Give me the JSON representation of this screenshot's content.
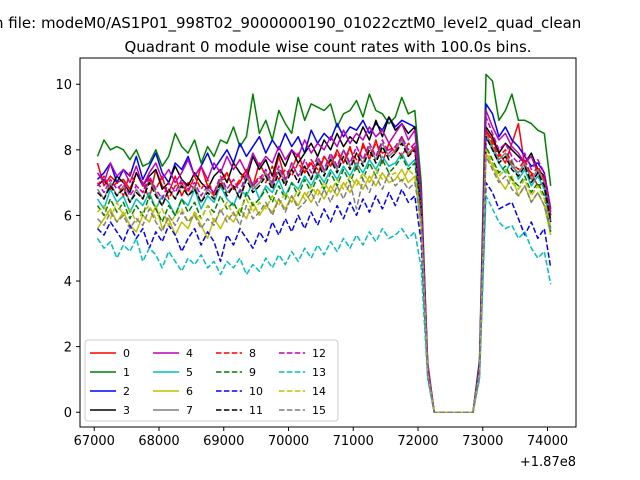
{
  "chart_data": {
    "type": "line",
    "suptitle": "n file: modeM0/AS1P01_998T02_9000000190_01022cztM0_level2_quad_clean",
    "title": "Quadrant 0 module wise count rates with 100.0s bins.",
    "x_offset_label": "+1.87e8",
    "xlim": [
      66780,
      74440
    ],
    "ylim": [
      -0.45,
      10.8
    ],
    "xticks": [
      67000,
      68000,
      69000,
      70000,
      71000,
      72000,
      73000,
      74000
    ],
    "yticks": [
      0,
      2,
      4,
      6,
      8,
      10
    ],
    "legend_position": "lower-left",
    "bin_start": 67050,
    "bin_step": 100,
    "n_bins": 71,
    "series": [
      {
        "name": "0",
        "color": "#ff0000",
        "dash": "solid",
        "values": [
          7.6,
          6.9,
          7.2,
          7.0,
          7.1,
          6.8,
          7.3,
          7.0,
          6.5,
          7.4,
          6.9,
          6.7,
          7.2,
          6.6,
          7.0,
          6.8,
          7.5,
          6.9,
          6.7,
          7.1,
          7.3,
          6.8,
          7.0,
          7.4,
          6.9,
          7.6,
          7.2,
          7.0,
          7.8,
          7.1,
          7.4,
          7.9,
          7.3,
          7.6,
          7.2,
          7.8,
          7.5,
          8.0,
          7.6,
          8.1,
          7.4,
          8.2,
          7.7,
          8.3,
          7.6,
          8.2,
          7.9,
          8.4,
          7.8,
          8.1,
          6.5,
          1.4,
          0.0,
          0.0,
          0.0,
          0.0,
          0.0,
          0.0,
          0.0,
          1.2,
          8.6,
          8.3,
          7.9,
          7.6,
          8.2,
          8.8,
          7.5,
          7.3,
          6.9,
          7.0,
          5.8
        ]
      },
      {
        "name": "1",
        "color": "#008000",
        "dash": "solid",
        "values": [
          7.8,
          8.3,
          8.0,
          8.1,
          8.0,
          7.7,
          8.0,
          7.5,
          7.6,
          8.0,
          7.5,
          7.8,
          8.5,
          8.1,
          7.9,
          8.3,
          7.6,
          8.1,
          7.8,
          8.3,
          8.2,
          8.7,
          8.1,
          8.4,
          9.7,
          8.5,
          8.9,
          8.3,
          9.2,
          8.8,
          8.5,
          9.6,
          8.9,
          9.4,
          9.3,
          9.2,
          9.4,
          8.7,
          9.1,
          9.2,
          9.5,
          9.0,
          9.7,
          9.2,
          9.1,
          8.8,
          9.0,
          9.6,
          9.1,
          9.2,
          7.0,
          1.5,
          0.0,
          0.0,
          0.0,
          0.0,
          0.0,
          0.0,
          0.0,
          1.6,
          10.3,
          10.1,
          8.9,
          9.2,
          9.7,
          8.9,
          8.9,
          8.8,
          8.6,
          8.5,
          6.9
        ]
      },
      {
        "name": "2",
        "color": "#0000ff",
        "dash": "solid",
        "values": [
          7.1,
          7.3,
          7.6,
          7.0,
          7.4,
          7.2,
          7.8,
          7.1,
          7.5,
          7.9,
          7.3,
          7.0,
          7.6,
          7.4,
          7.8,
          7.2,
          7.5,
          7.9,
          7.4,
          7.7,
          8.0,
          7.6,
          8.2,
          7.8,
          8.1,
          8.4,
          7.9,
          8.3,
          8.0,
          8.5,
          8.1,
          8.4,
          7.9,
          8.6,
          8.2,
          8.5,
          8.3,
          8.8,
          8.4,
          8.7,
          8.6,
          8.9,
          8.5,
          8.8,
          8.6,
          9.0,
          8.7,
          8.9,
          8.8,
          8.7,
          6.6,
          1.4,
          0.0,
          0.0,
          0.0,
          0.0,
          0.0,
          0.0,
          0.0,
          1.5,
          9.4,
          9.1,
          8.4,
          8.7,
          8.3,
          8.1,
          7.8,
          7.5,
          7.6,
          7.3,
          6.2
        ]
      },
      {
        "name": "3",
        "color": "#000000",
        "dash": "solid",
        "values": [
          6.9,
          7.1,
          6.8,
          7.2,
          7.0,
          6.7,
          7.3,
          6.9,
          7.2,
          7.4,
          6.8,
          7.0,
          7.5,
          7.1,
          6.9,
          7.3,
          7.0,
          6.8,
          7.2,
          7.4,
          7.0,
          7.6,
          7.3,
          7.1,
          7.8,
          7.4,
          7.7,
          7.2,
          7.9,
          7.5,
          8.0,
          7.6,
          7.9,
          8.2,
          7.8,
          8.3,
          8.0,
          8.5,
          8.1,
          8.4,
          8.2,
          8.7,
          8.3,
          8.9,
          8.4,
          9.0,
          8.6,
          8.8,
          8.5,
          8.7,
          6.4,
          1.3,
          0.0,
          0.0,
          0.0,
          0.0,
          0.0,
          0.0,
          0.0,
          1.3,
          8.7,
          8.4,
          7.9,
          8.2,
          8.0,
          7.8,
          7.6,
          7.9,
          7.4,
          7.2,
          6.0
        ]
      },
      {
        "name": "4",
        "color": "#bf00bf",
        "dash": "solid",
        "values": [
          7.3,
          7.0,
          7.6,
          7.2,
          7.4,
          7.0,
          7.5,
          6.9,
          7.3,
          7.6,
          7.1,
          7.4,
          7.0,
          7.3,
          7.7,
          7.2,
          7.5,
          7.1,
          7.6,
          7.3,
          7.8,
          7.4,
          7.7,
          7.3,
          7.9,
          7.5,
          7.8,
          7.6,
          8.1,
          7.7,
          8.0,
          7.8,
          8.3,
          7.9,
          8.2,
          8.0,
          8.4,
          8.1,
          8.6,
          8.2,
          8.5,
          8.3,
          8.7,
          8.4,
          8.6,
          8.2,
          8.5,
          8.8,
          8.3,
          8.6,
          6.6,
          1.5,
          0.0,
          0.0,
          0.0,
          0.0,
          0.0,
          0.0,
          0.0,
          1.4,
          9.2,
          8.7,
          8.3,
          8.5,
          8.1,
          7.9,
          7.6,
          7.8,
          7.3,
          7.1,
          6.1
        ]
      },
      {
        "name": "5",
        "color": "#00bfbf",
        "dash": "solid",
        "values": [
          6.5,
          6.2,
          6.8,
          6.4,
          6.6,
          6.1,
          6.5,
          6.3,
          6.7,
          6.2,
          6.6,
          6.4,
          6.0,
          6.5,
          6.3,
          6.8,
          6.2,
          6.6,
          6.4,
          6.9,
          6.5,
          6.3,
          6.8,
          6.6,
          7.0,
          6.5,
          6.9,
          6.7,
          7.1,
          6.6,
          7.0,
          6.8,
          7.2,
          6.9,
          7.3,
          7.0,
          7.4,
          7.1,
          7.5,
          7.2,
          7.6,
          7.3,
          7.7,
          7.4,
          7.8,
          7.5,
          7.6,
          7.9,
          7.5,
          7.7,
          6.0,
          1.2,
          0.0,
          0.0,
          0.0,
          0.0,
          0.0,
          0.0,
          0.0,
          1.3,
          8.4,
          8.0,
          7.6,
          7.3,
          7.7,
          7.1,
          7.4,
          6.9,
          7.2,
          6.8,
          5.6
        ]
      },
      {
        "name": "6",
        "color": "#bfbf00",
        "dash": "solid",
        "values": [
          5.6,
          5.9,
          6.2,
          5.8,
          6.1,
          5.7,
          5.5,
          6.0,
          5.8,
          6.3,
          5.6,
          5.9,
          5.4,
          5.8,
          5.6,
          6.1,
          5.7,
          5.3,
          5.9,
          5.6,
          6.0,
          5.8,
          6.2,
          5.9,
          6.4,
          6.0,
          6.3,
          6.1,
          6.5,
          6.2,
          6.6,
          6.3,
          6.7,
          6.4,
          6.8,
          6.5,
          6.9,
          6.6,
          7.0,
          6.7,
          7.1,
          6.8,
          7.2,
          6.9,
          7.3,
          7.0,
          7.1,
          7.4,
          7.0,
          7.2,
          5.6,
          1.1,
          0.0,
          0.0,
          0.0,
          0.0,
          0.0,
          0.0,
          0.0,
          1.2,
          7.9,
          7.5,
          7.1,
          6.8,
          7.2,
          6.6,
          6.9,
          6.4,
          6.7,
          6.3,
          5.4
        ]
      },
      {
        "name": "7",
        "color": "#7f7f7f",
        "dash": "solid",
        "values": [
          6.8,
          6.5,
          7.0,
          6.6,
          6.9,
          6.4,
          6.8,
          6.5,
          7.1,
          6.7,
          6.3,
          6.8,
          6.5,
          7.0,
          6.6,
          6.9,
          6.4,
          6.8,
          6.6,
          7.1,
          6.7,
          6.9,
          6.5,
          7.2,
          6.8,
          7.0,
          7.3,
          6.9,
          7.4,
          7.0,
          7.6,
          7.2,
          7.5,
          7.1,
          7.7,
          7.3,
          7.8,
          7.4,
          8.0,
          7.5,
          7.9,
          7.6,
          8.1,
          7.7,
          8.2,
          7.8,
          8.0,
          8.3,
          7.9,
          8.1,
          6.3,
          1.3,
          0.0,
          0.0,
          0.0,
          0.0,
          0.0,
          0.0,
          0.0,
          1.3,
          8.5,
          8.1,
          7.7,
          7.9,
          7.5,
          7.3,
          7.6,
          7.1,
          7.4,
          7.0,
          5.9
        ]
      },
      {
        "name": "8",
        "color": "#ff0000",
        "dash": "dashed",
        "values": [
          6.9,
          7.2,
          6.8,
          7.0,
          6.6,
          7.3,
          6.9,
          6.7,
          7.1,
          6.8,
          7.2,
          6.5,
          6.9,
          7.0,
          6.7,
          7.2,
          6.8,
          7.1,
          6.6,
          6.9,
          7.3,
          6.8,
          7.1,
          7.4,
          6.9,
          7.2,
          7.0,
          7.5,
          7.1,
          7.4,
          7.2,
          7.6,
          7.3,
          7.7,
          7.4,
          7.8,
          7.5,
          7.9,
          7.6,
          8.0,
          7.7,
          8.1,
          7.8,
          8.2,
          7.9,
          8.0,
          8.1,
          7.8,
          8.2,
          8.0,
          6.4,
          1.4,
          0.0,
          0.0,
          0.0,
          0.0,
          0.0,
          0.0,
          0.0,
          1.3,
          8.6,
          8.2,
          7.8,
          8.0,
          7.6,
          7.4,
          7.7,
          7.2,
          7.5,
          7.1,
          6.0
        ]
      },
      {
        "name": "9",
        "color": "#008000",
        "dash": "dashed",
        "values": [
          6.3,
          6.0,
          6.5,
          6.1,
          6.4,
          5.9,
          6.3,
          6.0,
          6.6,
          6.2,
          5.8,
          6.3,
          6.0,
          6.5,
          6.1,
          6.4,
          5.9,
          6.3,
          6.1,
          6.6,
          6.2,
          6.4,
          6.0,
          6.7,
          6.3,
          6.5,
          6.8,
          6.4,
          6.9,
          6.5,
          7.0,
          6.6,
          7.1,
          6.7,
          7.2,
          6.8,
          7.3,
          6.9,
          7.4,
          7.0,
          7.5,
          7.1,
          7.6,
          7.2,
          7.7,
          7.3,
          7.5,
          7.8,
          7.4,
          7.6,
          6.0,
          1.2,
          0.0,
          0.0,
          0.0,
          0.0,
          0.0,
          0.0,
          0.0,
          1.2,
          8.1,
          7.7,
          7.3,
          7.5,
          7.1,
          6.9,
          7.2,
          6.7,
          7.0,
          6.6,
          5.5
        ]
      },
      {
        "name": "10",
        "color": "#0000ff",
        "dash": "dashed",
        "values": [
          5.6,
          5.4,
          5.8,
          5.5,
          5.2,
          5.7,
          5.3,
          5.6,
          5.0,
          5.5,
          5.2,
          5.7,
          5.4,
          4.9,
          5.3,
          5.6,
          5.1,
          5.5,
          5.2,
          4.6,
          5.4,
          5.1,
          5.6,
          5.3,
          5.0,
          5.5,
          5.2,
          5.8,
          5.4,
          5.9,
          5.5,
          6.0,
          5.6,
          6.1,
          5.7,
          6.2,
          5.8,
          6.3,
          5.9,
          6.4,
          6.0,
          6.5,
          6.1,
          6.6,
          6.2,
          6.7,
          6.3,
          6.8,
          6.4,
          6.6,
          5.2,
          1.1,
          0.0,
          0.0,
          0.0,
          0.0,
          0.0,
          0.0,
          0.0,
          1.1,
          7.0,
          6.7,
          6.2,
          6.3,
          6.4,
          5.9,
          5.4,
          5.8,
          5.3,
          5.6,
          4.4
        ]
      },
      {
        "name": "11",
        "color": "#000000",
        "dash": "dashed",
        "values": [
          6.7,
          6.5,
          6.9,
          6.6,
          6.8,
          6.4,
          6.7,
          6.5,
          7.0,
          6.6,
          6.3,
          6.8,
          6.5,
          6.9,
          6.6,
          6.8,
          6.4,
          6.7,
          6.5,
          7.0,
          6.6,
          6.9,
          6.5,
          7.1,
          6.7,
          6.9,
          7.2,
          6.8,
          7.3,
          6.9,
          7.4,
          7.0,
          7.5,
          7.1,
          7.6,
          7.2,
          7.7,
          7.3,
          7.8,
          7.4,
          7.9,
          7.5,
          8.0,
          7.6,
          8.1,
          7.7,
          7.9,
          8.2,
          7.8,
          8.0,
          6.3,
          1.3,
          0.0,
          0.0,
          0.0,
          0.0,
          0.0,
          0.0,
          0.0,
          1.3,
          8.4,
          8.0,
          7.6,
          7.8,
          7.4,
          7.2,
          7.5,
          7.0,
          7.3,
          6.9,
          5.8
        ]
      },
      {
        "name": "12",
        "color": "#bf00bf",
        "dash": "dashed",
        "values": [
          7.0,
          6.7,
          7.1,
          6.8,
          7.0,
          6.6,
          6.9,
          6.7,
          7.2,
          6.8,
          6.5,
          7.0,
          6.7,
          7.1,
          6.8,
          7.0,
          6.6,
          6.9,
          6.7,
          7.2,
          6.8,
          7.1,
          6.7,
          7.3,
          6.9,
          7.1,
          7.4,
          7.0,
          7.5,
          7.1,
          7.6,
          7.2,
          7.7,
          7.3,
          7.8,
          7.4,
          7.9,
          7.5,
          8.0,
          7.6,
          8.1,
          7.7,
          8.2,
          7.8,
          8.3,
          7.9,
          8.1,
          8.4,
          8.0,
          8.2,
          6.5,
          1.4,
          0.0,
          0.0,
          0.0,
          0.0,
          0.0,
          0.0,
          0.0,
          1.4,
          9.0,
          8.5,
          8.0,
          8.2,
          7.8,
          7.6,
          7.9,
          7.4,
          7.7,
          7.3,
          6.1
        ]
      },
      {
        "name": "13",
        "color": "#00bfbf",
        "dash": "dashed",
        "values": [
          5.3,
          5.0,
          5.2,
          4.7,
          5.1,
          4.9,
          5.3,
          4.6,
          5.0,
          4.8,
          4.4,
          4.9,
          4.6,
          4.3,
          4.7,
          4.5,
          4.8,
          4.4,
          4.6,
          4.2,
          4.6,
          4.4,
          4.7,
          4.2,
          4.5,
          4.3,
          4.7,
          4.4,
          4.8,
          4.5,
          4.9,
          4.6,
          5.0,
          4.7,
          5.1,
          4.8,
          5.2,
          4.9,
          5.3,
          5.0,
          5.4,
          5.1,
          5.5,
          5.2,
          5.6,
          5.3,
          5.4,
          5.6,
          5.3,
          5.5,
          4.4,
          1.0,
          0.0,
          0.0,
          0.0,
          0.0,
          0.0,
          0.0,
          0.0,
          1.0,
          6.6,
          6.2,
          5.8,
          5.6,
          5.7,
          5.3,
          5.5,
          5.0,
          4.7,
          4.9,
          3.9
        ]
      },
      {
        "name": "14",
        "color": "#bfbf00",
        "dash": "dashed",
        "values": [
          6.1,
          6.3,
          5.9,
          6.4,
          6.0,
          6.2,
          5.8,
          6.1,
          6.3,
          5.9,
          6.2,
          5.7,
          6.0,
          6.2,
          5.8,
          6.1,
          5.9,
          6.3,
          5.8,
          6.1,
          6.4,
          6.0,
          6.2,
          6.5,
          6.1,
          6.4,
          6.2,
          6.6,
          6.3,
          6.7,
          6.4,
          6.8,
          6.5,
          6.9,
          6.6,
          7.0,
          6.7,
          7.1,
          6.8,
          7.2,
          6.9,
          7.3,
          7.0,
          7.4,
          7.1,
          7.2,
          7.3,
          7.0,
          7.4,
          7.2,
          5.8,
          1.2,
          0.0,
          0.0,
          0.0,
          0.0,
          0.0,
          0.0,
          0.0,
          1.2,
          8.0,
          7.6,
          7.2,
          7.4,
          7.0,
          6.8,
          7.1,
          6.6,
          6.9,
          6.5,
          5.6
        ]
      },
      {
        "name": "15",
        "color": "#7f7f7f",
        "dash": "dashed",
        "values": [
          5.9,
          5.7,
          6.1,
          5.8,
          6.0,
          5.6,
          5.9,
          5.7,
          6.2,
          5.8,
          5.5,
          6.0,
          5.7,
          6.1,
          5.8,
          6.0,
          5.6,
          5.9,
          5.7,
          6.2,
          5.8,
          6.1,
          5.7,
          6.3,
          5.9,
          6.1,
          6.4,
          6.0,
          6.5,
          6.1,
          6.6,
          6.2,
          6.4,
          6.7,
          6.3,
          6.8,
          6.4,
          6.9,
          6.5,
          7.0,
          6.2,
          7.1,
          6.7,
          7.2,
          6.8,
          7.3,
          6.9,
          7.1,
          6.8,
          7.0,
          5.8,
          1.2,
          0.0,
          0.0,
          0.0,
          0.0,
          0.0,
          0.0,
          0.0,
          1.2,
          7.8,
          7.4,
          7.0,
          7.2,
          6.8,
          6.6,
          6.9,
          6.4,
          6.7,
          6.3,
          5.5
        ]
      }
    ]
  }
}
